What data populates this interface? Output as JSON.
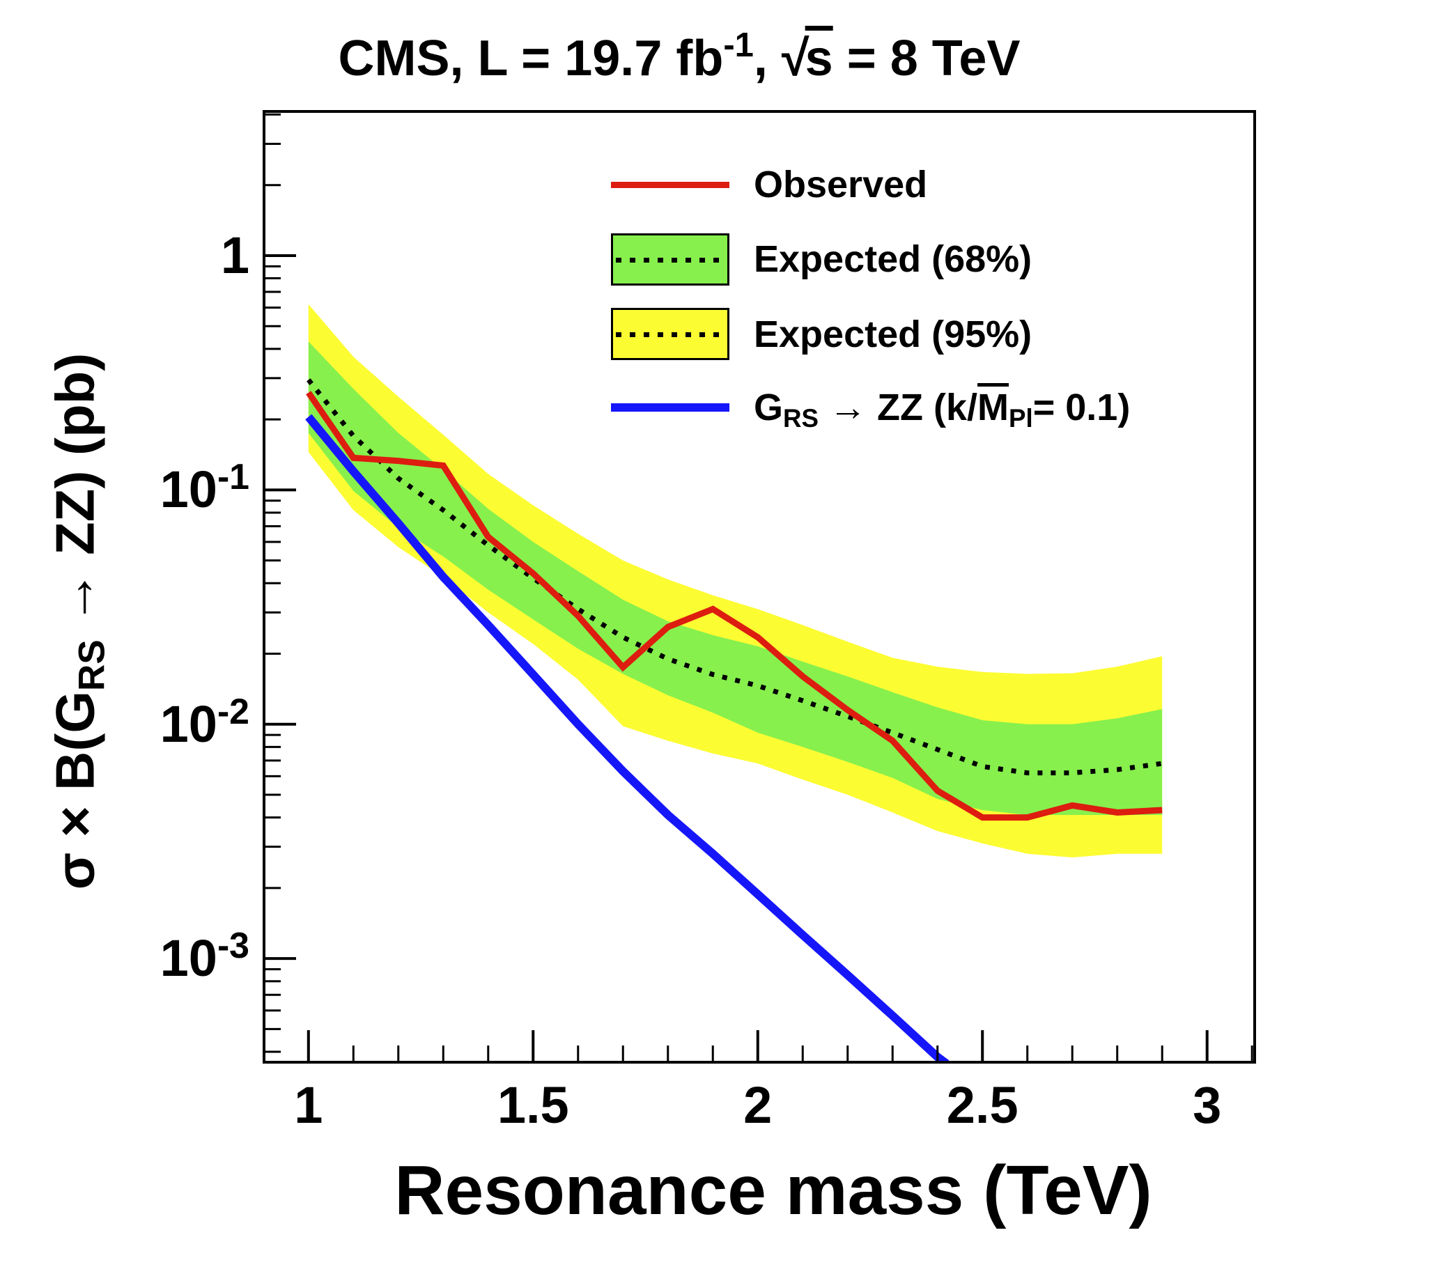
{
  "title": {
    "part1": "CMS, L = 19.7 fb",
    "exponent": "-1",
    "part2": ", ",
    "sqrt_sign": "√",
    "sqrt_arg": "s",
    "part3": " = 8 TeV"
  },
  "axes": {
    "x_label": "Resonance mass (TeV)",
    "y_label": {
      "part1": "σ × B(G",
      "sub": "RS",
      "part2": " → ZZ) (pb)"
    }
  },
  "legend": {
    "observed": {
      "label": "Observed",
      "color": "#dc1d10"
    },
    "expected68": {
      "label": "Expected (68%)",
      "color": "#87f04d"
    },
    "expected95": {
      "label": "Expected (95%)",
      "color": "#fcfc33"
    },
    "theory": {
      "color": "#1616fa",
      "part1": "G",
      "sub1": "RS",
      "part2": " → ZZ (k/",
      "mbar": "M",
      "sub2": "Pl",
      "part3": "= 0.1)"
    }
  },
  "colors": {
    "observed": "#dc1d10",
    "expected_median": "#000000",
    "band68": "#87f04d",
    "band95": "#fcfc33",
    "theory": "#1616fa",
    "frame": "#000000"
  },
  "chart_data": {
    "type": "line",
    "title": "CMS, L = 19.7 fb⁻¹, √s = 8 TeV",
    "xlabel": "Resonance mass (TeV)",
    "ylabel": "σ × B(G_RS → ZZ) (pb)",
    "x_range": [
      0.898,
      3.109
    ],
    "y_range": [
      0.000356,
      4.18
    ],
    "y_scale": "log",
    "grid": false,
    "legend_position": "top-right",
    "x_ticks": {
      "major": [
        {
          "v": 1,
          "label": "1"
        },
        {
          "v": 1.5,
          "label": "1.5"
        },
        {
          "v": 2,
          "label": "2"
        },
        {
          "v": 2.5,
          "label": "2.5"
        },
        {
          "v": 3,
          "label": "3"
        }
      ],
      "minor_step": 0.1,
      "minor_from": 1.0,
      "minor_to": 3.1
    },
    "y_ticks": {
      "major": [
        {
          "v": 1,
          "base": "1",
          "exp": ""
        },
        {
          "v": 0.1,
          "base": "10",
          "exp": "-1"
        },
        {
          "v": 0.01,
          "base": "10",
          "exp": "-2"
        },
        {
          "v": 0.001,
          "base": "10",
          "exp": "-3"
        }
      ],
      "minor_decades": [
        -4,
        -3,
        -2,
        -1,
        0
      ]
    },
    "masses": [
      1.0,
      1.1,
      1.2,
      1.3,
      1.4,
      1.5,
      1.6,
      1.7,
      1.8,
      1.9,
      2.0,
      2.1,
      2.2,
      2.3,
      2.4,
      2.5,
      2.6,
      2.7,
      2.8,
      2.9
    ],
    "series": [
      {
        "id": "expected-95-band",
        "name": "Expected (95%)",
        "type": "band",
        "color": "#fcfc33",
        "upper": [
          0.62,
          0.37,
          0.25,
          0.172,
          0.117,
          0.086,
          0.065,
          0.05,
          0.0415,
          0.0355,
          0.031,
          0.0265,
          0.0225,
          0.0192,
          0.0176,
          0.0167,
          0.0164,
          0.0165,
          0.0176,
          0.0195
        ],
        "lower": [
          0.145,
          0.082,
          0.057,
          0.0425,
          0.03,
          0.022,
          0.0155,
          0.0098,
          0.0085,
          0.0075,
          0.0068,
          0.0058,
          0.005,
          0.0042,
          0.0035,
          0.0031,
          0.0028,
          0.0027,
          0.0028,
          0.0028
        ]
      },
      {
        "id": "expected-68-band",
        "name": "Expected (68%)",
        "type": "band",
        "color": "#87f04d",
        "upper": [
          0.43,
          0.27,
          0.175,
          0.122,
          0.083,
          0.06,
          0.045,
          0.034,
          0.0275,
          0.024,
          0.0215,
          0.0185,
          0.016,
          0.0137,
          0.0118,
          0.0104,
          0.01,
          0.01,
          0.0106,
          0.0116
        ],
        "lower": [
          0.175,
          0.099,
          0.069,
          0.052,
          0.0375,
          0.028,
          0.021,
          0.0164,
          0.0133,
          0.0112,
          0.0092,
          0.008,
          0.0069,
          0.0059,
          0.0048,
          0.0043,
          0.0041,
          0.0041,
          0.0041,
          0.0041
        ]
      },
      {
        "id": "expected-median-line",
        "name": "Expected (median)",
        "type": "line",
        "style": "dotted",
        "color": "#000000",
        "width": 7,
        "values": [
          0.295,
          0.17,
          0.112,
          0.082,
          0.058,
          0.042,
          0.031,
          0.0235,
          0.019,
          0.0163,
          0.0146,
          0.0126,
          0.0108,
          0.0092,
          0.0078,
          0.0066,
          0.0062,
          0.0062,
          0.0064,
          0.0068
        ]
      },
      {
        "id": "theory-line",
        "name": "G_RS → ZZ (k/M_Pl = 0.1)",
        "type": "line",
        "color": "#1616fa",
        "width": 12,
        "x": [
          1.0,
          1.1,
          1.2,
          1.3,
          1.4,
          1.5,
          1.6,
          1.7,
          1.8,
          1.9,
          2.0,
          2.1,
          2.2,
          2.3,
          2.4,
          2.42
        ],
        "values": [
          0.205,
          0.12,
          0.072,
          0.0425,
          0.0265,
          0.0163,
          0.01,
          0.0063,
          0.0041,
          0.0028,
          0.00188,
          0.00126,
          0.00085,
          0.00057,
          0.00038,
          0.000356
        ]
      },
      {
        "id": "observed-line",
        "name": "Observed",
        "type": "line",
        "color": "#dc1d10",
        "width": 9,
        "values": [
          0.26,
          0.137,
          0.133,
          0.127,
          0.063,
          0.044,
          0.029,
          0.0175,
          0.026,
          0.031,
          0.0235,
          0.016,
          0.0115,
          0.0085,
          0.0052,
          0.004,
          0.004,
          0.0045,
          0.0042,
          0.0043
        ]
      }
    ]
  }
}
